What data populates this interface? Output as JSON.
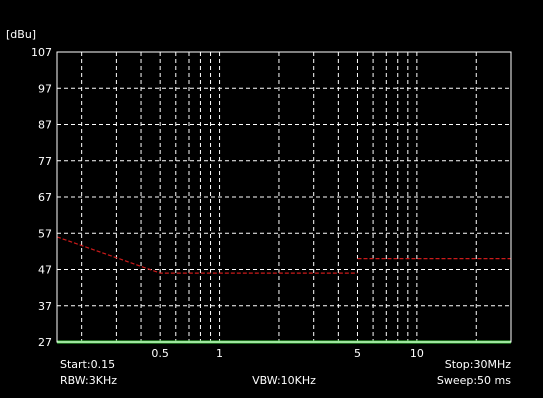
{
  "chart_data": {
    "type": "line",
    "ylabel": "[dBu]",
    "y_ticks": [
      107,
      97,
      87,
      77,
      67,
      57,
      47,
      37,
      27
    ],
    "ylim": [
      27,
      107
    ],
    "x_scale": "log",
    "xlim": [
      0.15,
      30
    ],
    "x_tick_labels": [
      {
        "value": 0.5,
        "label": "0.5"
      },
      {
        "value": 1,
        "label": "1"
      },
      {
        "value": 5,
        "label": "5"
      },
      {
        "value": 10,
        "label": "10"
      }
    ],
    "x_gridlines": [
      0.2,
      0.3,
      0.4,
      0.5,
      0.6,
      0.7,
      0.8,
      0.9,
      1,
      2,
      3,
      4,
      5,
      6,
      7,
      8,
      9,
      10,
      20,
      30
    ],
    "grid": true,
    "series": [
      {
        "color": "#cc1a1a",
        "style": "dashed",
        "segments": [
          [
            [
              0.15,
              56
            ],
            [
              0.5,
              46
            ],
            [
              5,
              46
            ]
          ],
          [
            [
              5,
              50
            ],
            [
              30,
              50
            ]
          ]
        ]
      },
      {
        "color": "#3ccc3c",
        "style": "solid",
        "segments": [
          [
            [
              0.15,
              27
            ],
            [
              30,
              27
            ]
          ]
        ]
      }
    ],
    "footer": {
      "start": "Start:0.15",
      "stop": "Stop:30MHz",
      "rbw": "RBW:3KHz",
      "vbw": "VBW:10KHz",
      "sweep": "Sweep:50 ms"
    },
    "colors": {
      "background": "#000000",
      "axes": "#ffffff",
      "grid": "#ffffff",
      "text": "#ffffff"
    }
  }
}
